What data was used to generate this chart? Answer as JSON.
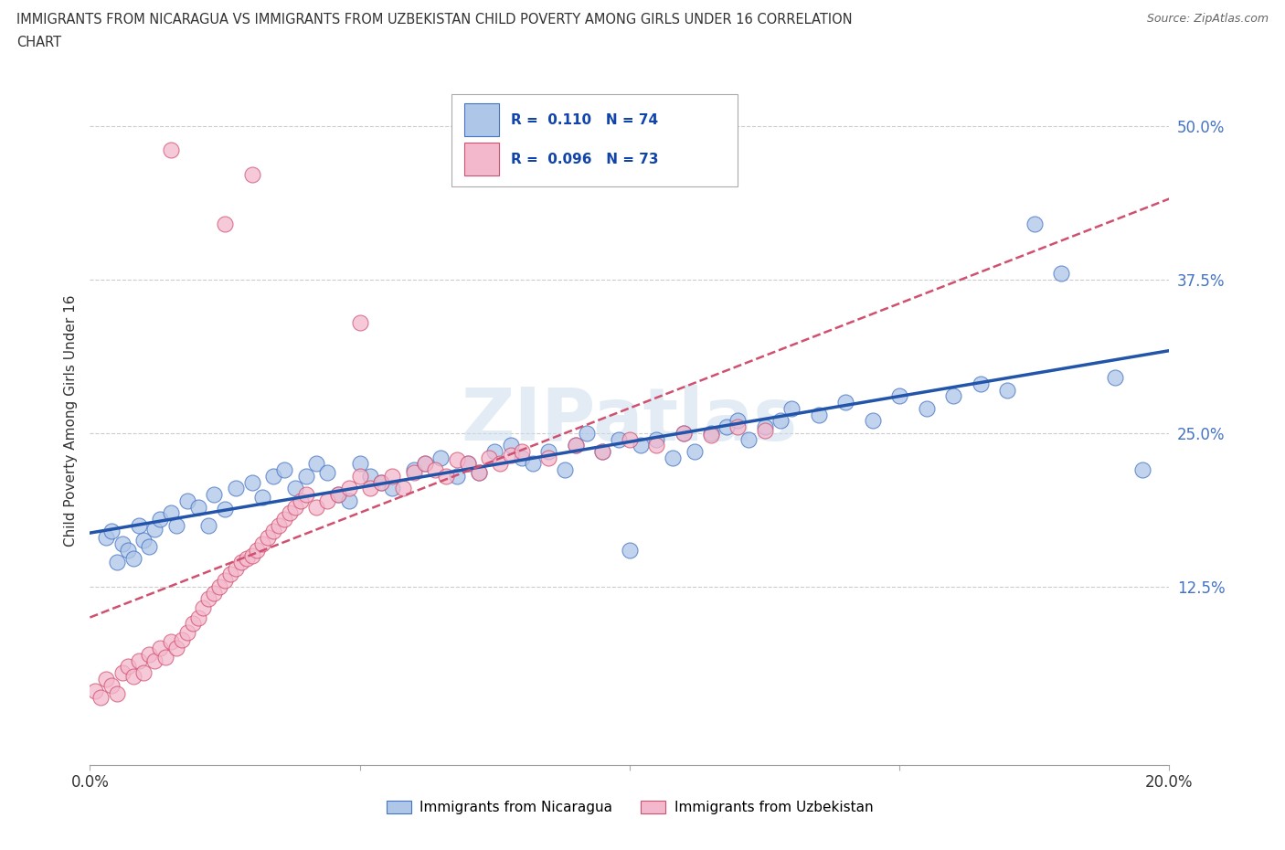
{
  "title_line1": "IMMIGRANTS FROM NICARAGUA VS IMMIGRANTS FROM UZBEKISTAN CHILD POVERTY AMONG GIRLS UNDER 16 CORRELATION",
  "title_line2": "CHART",
  "source": "Source: ZipAtlas.com",
  "ylabel": "Child Poverty Among Girls Under 16",
  "watermark": "ZIPatlas",
  "xlim": [
    0.0,
    0.2
  ],
  "ylim": [
    -0.02,
    0.54
  ],
  "yticks": [
    0.125,
    0.25,
    0.375,
    0.5
  ],
  "ytick_labels": [
    "12.5%",
    "25.0%",
    "37.5%",
    "50.0%"
  ],
  "xticks": [
    0.0,
    0.05,
    0.1,
    0.15,
    0.2
  ],
  "xtick_labels": [
    "0.0%",
    "",
    "",
    "",
    "20.0%"
  ],
  "series": [
    {
      "name": "Immigrants from Nicaragua",
      "color": "#aec6e8",
      "edge_color": "#4472c4",
      "R": 0.11,
      "N": 74,
      "trend_style": "solid",
      "trend_color": "#2255aa",
      "x": [
        0.003,
        0.004,
        0.005,
        0.006,
        0.007,
        0.008,
        0.009,
        0.01,
        0.011,
        0.012,
        0.013,
        0.015,
        0.016,
        0.018,
        0.02,
        0.022,
        0.023,
        0.025,
        0.027,
        0.03,
        0.032,
        0.034,
        0.036,
        0.038,
        0.04,
        0.042,
        0.044,
        0.046,
        0.048,
        0.05,
        0.052,
        0.054,
        0.056,
        0.06,
        0.062,
        0.065,
        0.068,
        0.07,
        0.072,
        0.075,
        0.078,
        0.08,
        0.082,
        0.085,
        0.088,
        0.09,
        0.092,
        0.095,
        0.098,
        0.1,
        0.102,
        0.105,
        0.108,
        0.11,
        0.112,
        0.115,
        0.118,
        0.12,
        0.122,
        0.125,
        0.128,
        0.13,
        0.135,
        0.14,
        0.145,
        0.15,
        0.155,
        0.16,
        0.165,
        0.17,
        0.175,
        0.18,
        0.19,
        0.195
      ],
      "y": [
        0.165,
        0.17,
        0.145,
        0.16,
        0.155,
        0.148,
        0.175,
        0.163,
        0.158,
        0.172,
        0.18,
        0.185,
        0.175,
        0.195,
        0.19,
        0.175,
        0.2,
        0.188,
        0.205,
        0.21,
        0.198,
        0.215,
        0.22,
        0.205,
        0.215,
        0.225,
        0.218,
        0.2,
        0.195,
        0.225,
        0.215,
        0.21,
        0.205,
        0.22,
        0.225,
        0.23,
        0.215,
        0.225,
        0.218,
        0.235,
        0.24,
        0.23,
        0.225,
        0.235,
        0.22,
        0.24,
        0.25,
        0.235,
        0.245,
        0.155,
        0.24,
        0.245,
        0.23,
        0.25,
        0.235,
        0.25,
        0.255,
        0.26,
        0.245,
        0.255,
        0.26,
        0.27,
        0.265,
        0.275,
        0.26,
        0.28,
        0.27,
        0.28,
        0.29,
        0.285,
        0.42,
        0.38,
        0.295,
        0.22
      ]
    },
    {
      "name": "Immigrants from Uzbekistan",
      "color": "#f4b8cc",
      "edge_color": "#d05070",
      "R": 0.096,
      "N": 73,
      "trend_style": "dashed",
      "trend_color": "#d05070",
      "x": [
        0.001,
        0.002,
        0.003,
        0.004,
        0.005,
        0.006,
        0.007,
        0.008,
        0.009,
        0.01,
        0.011,
        0.012,
        0.013,
        0.014,
        0.015,
        0.016,
        0.017,
        0.018,
        0.019,
        0.02,
        0.021,
        0.022,
        0.023,
        0.024,
        0.025,
        0.026,
        0.027,
        0.028,
        0.029,
        0.03,
        0.031,
        0.032,
        0.033,
        0.034,
        0.035,
        0.036,
        0.037,
        0.038,
        0.039,
        0.04,
        0.042,
        0.044,
        0.046,
        0.048,
        0.05,
        0.052,
        0.054,
        0.056,
        0.058,
        0.06,
        0.062,
        0.064,
        0.066,
        0.068,
        0.07,
        0.072,
        0.074,
        0.076,
        0.078,
        0.08,
        0.085,
        0.09,
        0.095,
        0.1,
        0.105,
        0.11,
        0.115,
        0.12,
        0.125,
        0.05,
        0.025,
        0.03,
        0.015
      ],
      "y": [
        0.04,
        0.035,
        0.05,
        0.045,
        0.038,
        0.055,
        0.06,
        0.052,
        0.065,
        0.055,
        0.07,
        0.065,
        0.075,
        0.068,
        0.08,
        0.075,
        0.082,
        0.088,
        0.095,
        0.1,
        0.108,
        0.115,
        0.12,
        0.125,
        0.13,
        0.135,
        0.14,
        0.145,
        0.148,
        0.15,
        0.155,
        0.16,
        0.165,
        0.17,
        0.175,
        0.18,
        0.185,
        0.19,
        0.195,
        0.2,
        0.19,
        0.195,
        0.2,
        0.205,
        0.215,
        0.205,
        0.21,
        0.215,
        0.205,
        0.218,
        0.225,
        0.22,
        0.215,
        0.228,
        0.225,
        0.218,
        0.23,
        0.225,
        0.232,
        0.235,
        0.23,
        0.24,
        0.235,
        0.245,
        0.24,
        0.25,
        0.248,
        0.255,
        0.252,
        0.34,
        0.42,
        0.46,
        0.48
      ]
    }
  ],
  "legend_R_color": "#1144aa",
  "legend_N_color": "#1144aa"
}
